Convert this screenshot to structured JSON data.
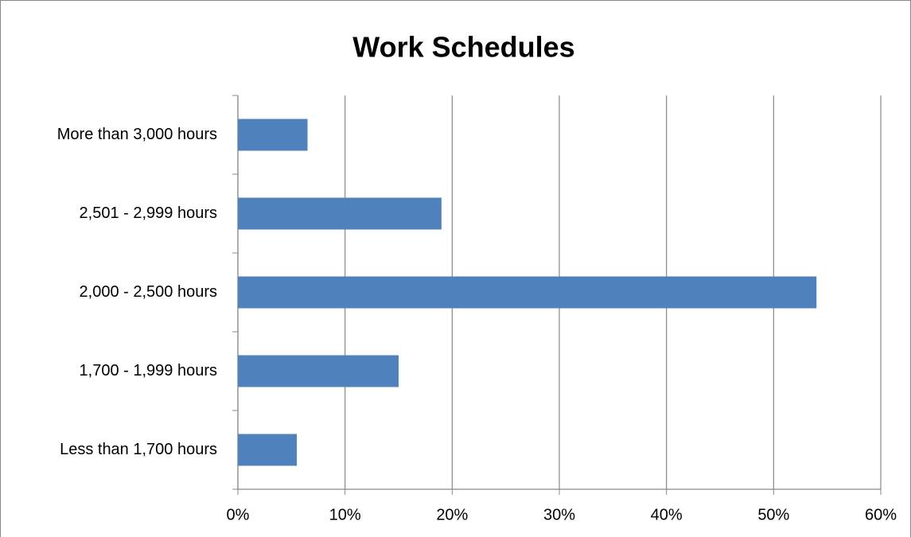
{
  "chart_data": {
    "type": "bar",
    "orientation": "horizontal",
    "title": "Work Schedules",
    "categories": [
      "More than 3,000 hours",
      "2,501 - 2,999 hours",
      "2,000 - 2,500 hours",
      "1,700 - 1,999 hours",
      "Less than 1,700 hours"
    ],
    "values": [
      6.5,
      19,
      54,
      15,
      5.5
    ],
    "color": "#4f81bd",
    "xlim": [
      0,
      60
    ],
    "xticks": [
      {
        "value": 0,
        "label": "0%"
      },
      {
        "value": 10,
        "label": "10%"
      },
      {
        "value": 20,
        "label": "20%"
      },
      {
        "value": 30,
        "label": "30%"
      },
      {
        "value": 40,
        "label": "40%"
      },
      {
        "value": 50,
        "label": "50%"
      },
      {
        "value": 60,
        "label": "60%"
      }
    ],
    "grid": true
  }
}
